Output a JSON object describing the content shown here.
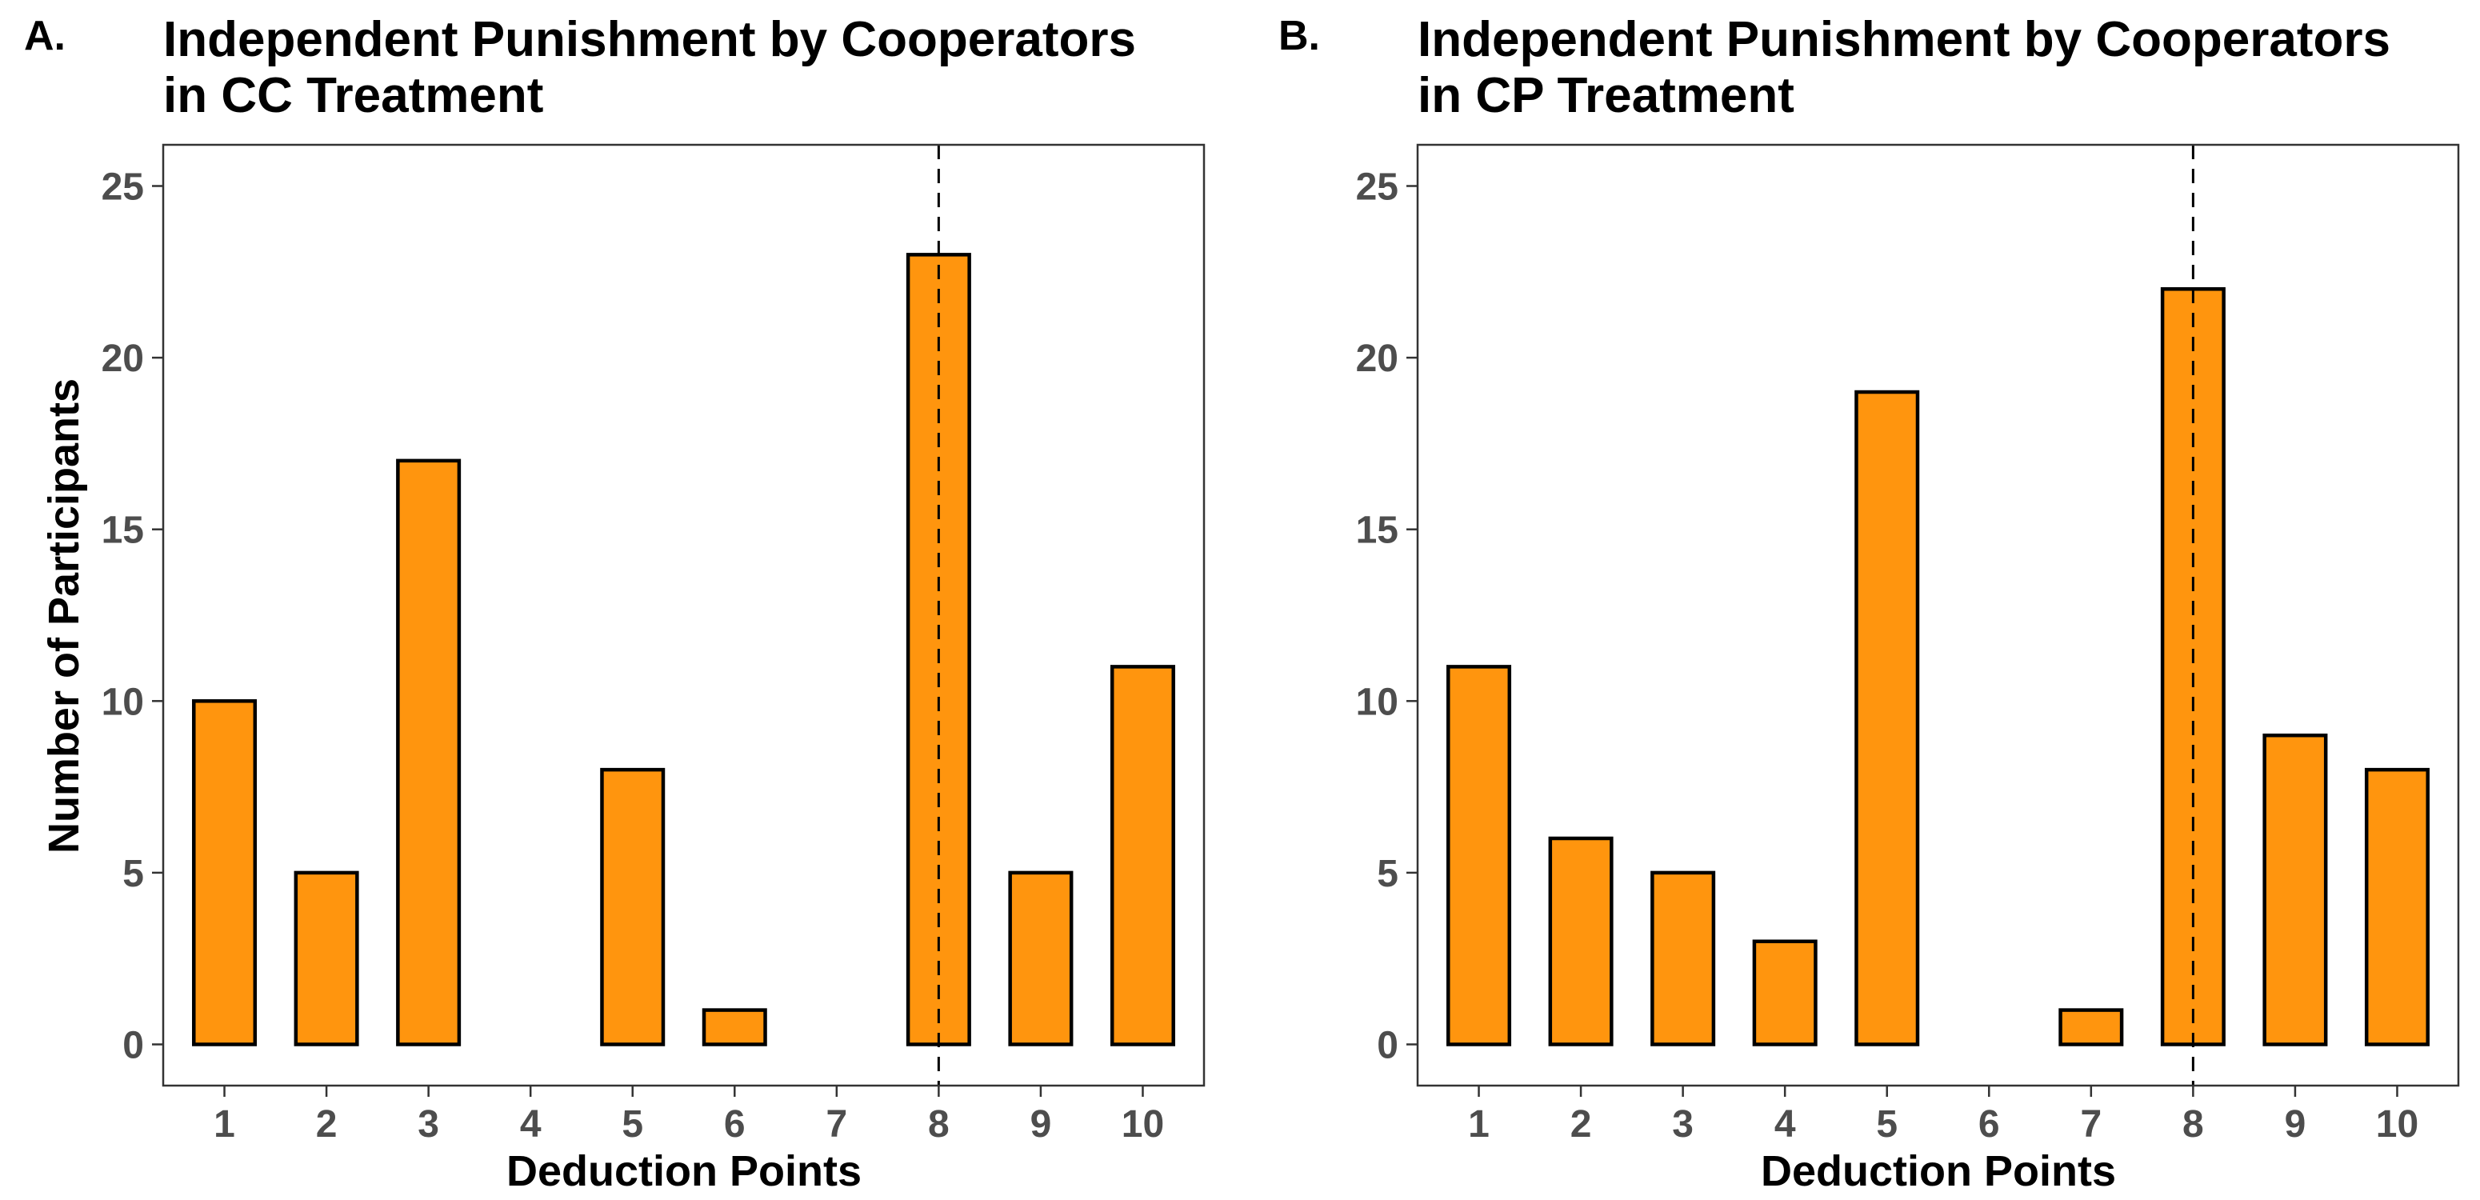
{
  "colors": {
    "bar_fill": "#FF950E",
    "bar_outline": "#000000",
    "frame": "#333333",
    "tick_text": "#4d4d4d"
  },
  "panels": [
    {
      "letter": "A.",
      "title_lines": [
        "Independent Punishment by Cooperators",
        "in CC Treatment"
      ]
    },
    {
      "letter": "B.",
      "title_lines": [
        "Independent Punishment by Cooperators",
        "in CP Treatment"
      ]
    }
  ],
  "chart_data": [
    {
      "type": "bar",
      "title": "Independent Punishment by Cooperators in CC Treatment",
      "xlabel": "Deduction Points",
      "ylabel": "Number of Participants",
      "categories": [
        "1",
        "2",
        "3",
        "4",
        "5",
        "6",
        "7",
        "8",
        "9",
        "10"
      ],
      "values": [
        10,
        5,
        17,
        0,
        8,
        1,
        0,
        23,
        5,
        11
      ],
      "ylim": [
        -1.2,
        25
      ],
      "yticks": [
        0,
        5,
        10,
        15,
        20,
        25
      ],
      "reference_line": {
        "x": 8,
        "style": "dashed"
      },
      "grid": false
    },
    {
      "type": "bar",
      "title": "Independent Punishment by Cooperators in CP Treatment",
      "xlabel": "Deduction Points",
      "ylabel": "",
      "categories": [
        "1",
        "2",
        "3",
        "4",
        "5",
        "6",
        "7",
        "8",
        "9",
        "10"
      ],
      "values": [
        11,
        6,
        5,
        3,
        19,
        0,
        1,
        22,
        9,
        8
      ],
      "ylim": [
        -1.2,
        25
      ],
      "yticks": [
        0,
        5,
        10,
        15,
        20,
        25
      ],
      "reference_line": {
        "x": 8,
        "style": "dashed"
      },
      "grid": false
    }
  ]
}
